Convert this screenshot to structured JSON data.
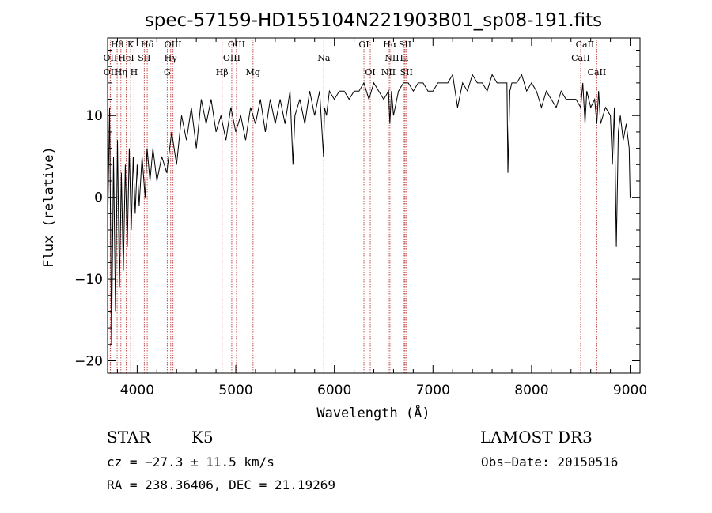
{
  "chart_data": {
    "type": "line",
    "title": "spec-57159-HD155104N221903B01_sp08-191.fits",
    "xlabel": "Wavelength (Å)",
    "ylabel": "Flux (relative)",
    "xlim": [
      3700,
      9100
    ],
    "ylim": [
      -21.5,
      19.5
    ],
    "x_ticks": [
      4000,
      5000,
      6000,
      7000,
      8000,
      9000
    ],
    "y_ticks": [
      10,
      0,
      -10,
      -20
    ],
    "x_tick_labels": [
      "4000",
      "5000",
      "6000",
      "7000",
      "8000",
      "9000"
    ],
    "y_tick_labels": [
      "10",
      "0",
      "−10",
      "−20"
    ],
    "series": [
      {
        "name": "flux",
        "x": [
          3700,
          3720,
          3740,
          3760,
          3780,
          3800,
          3820,
          3840,
          3860,
          3880,
          3900,
          3920,
          3940,
          3960,
          3980,
          4000,
          4020,
          4050,
          4080,
          4100,
          4130,
          4160,
          4200,
          4250,
          4300,
          4350,
          4400,
          4450,
          4500,
          4550,
          4600,
          4650,
          4700,
          4750,
          4800,
          4850,
          4900,
          4950,
          5000,
          5050,
          5100,
          5150,
          5200,
          5250,
          5300,
          5350,
          5400,
          5450,
          5500,
          5550,
          5580,
          5600,
          5650,
          5700,
          5750,
          5800,
          5850,
          5890,
          5900,
          5920,
          5950,
          6000,
          6050,
          6100,
          6150,
          6200,
          6250,
          6300,
          6350,
          6400,
          6450,
          6500,
          6550,
          6563,
          6580,
          6600,
          6650,
          6700,
          6750,
          6800,
          6850,
          6900,
          6950,
          7000,
          7050,
          7100,
          7150,
          7200,
          7250,
          7300,
          7350,
          7400,
          7450,
          7500,
          7550,
          7600,
          7650,
          7700,
          7750,
          7760,
          7780,
          7800,
          7850,
          7900,
          7950,
          8000,
          8050,
          8100,
          8150,
          8200,
          8250,
          8300,
          8350,
          8400,
          8450,
          8498,
          8520,
          8542,
          8560,
          8600,
          8640,
          8662,
          8680,
          8700,
          8750,
          8800,
          8820,
          8840,
          8860,
          8880,
          8900,
          8930,
          8960,
          8990,
          9000
        ],
        "y": [
          -4,
          11,
          -18,
          5,
          -14,
          7,
          -11,
          3,
          -9,
          4,
          -6,
          6,
          -4,
          5,
          -2,
          4,
          -1,
          5,
          0,
          6,
          2,
          6,
          2,
          5,
          3,
          8,
          4,
          10,
          7,
          11,
          6,
          12,
          9,
          12,
          8,
          10,
          7,
          11,
          8,
          10,
          7,
          11,
          9,
          12,
          8,
          12,
          9,
          12,
          9,
          13,
          4,
          10,
          12,
          9,
          13,
          10,
          13,
          5,
          11,
          10,
          13,
          12,
          13,
          13,
          12,
          13,
          13,
          14,
          12,
          14,
          13,
          12,
          13,
          9,
          13,
          10,
          13,
          14,
          14,
          13,
          14,
          14,
          13,
          13,
          14,
          14,
          14,
          15,
          11,
          14,
          13,
          15,
          14,
          14,
          13,
          15,
          14,
          14,
          14,
          3,
          13,
          14,
          14,
          15,
          13,
          14,
          13,
          11,
          13,
          12,
          11,
          13,
          12,
          12,
          12,
          11,
          14,
          9,
          13,
          11,
          12,
          9,
          13,
          9,
          11,
          10,
          4,
          11,
          -6,
          8,
          10,
          7,
          9,
          6,
          0
        ]
      }
    ],
    "spectral_lines": [
      {
        "row": 1,
        "label": "Hθ",
        "wavelength": 3797
      },
      {
        "row": 1,
        "label": "K",
        "wavelength": 3934
      },
      {
        "row": 1,
        "label": "Hδ",
        "wavelength": 4102
      },
      {
        "row": 1,
        "label": "OIII",
        "wavelength": 4363
      },
      {
        "row": 1,
        "label": "OIII",
        "wavelength": 5007
      },
      {
        "row": 1,
        "label": "OI",
        "wavelength": 6300
      },
      {
        "row": 1,
        "label": "Hα",
        "wavelength": 6563
      },
      {
        "row": 1,
        "label": "SII",
        "wavelength": 6717
      },
      {
        "row": 1,
        "label": "CaII",
        "wavelength": 8542
      },
      {
        "row": 2,
        "label": "OII",
        "wavelength": 3727
      },
      {
        "row": 2,
        "label": "HeI",
        "wavelength": 3889
      },
      {
        "row": 2,
        "label": "SII",
        "wavelength": 4072
      },
      {
        "row": 2,
        "label": "Hγ",
        "wavelength": 4340
      },
      {
        "row": 2,
        "label": "OIII",
        "wavelength": 4959
      },
      {
        "row": 2,
        "label": "Na",
        "wavelength": 5893
      },
      {
        "row": 2,
        "label": "NII",
        "wavelength": 6584
      },
      {
        "row": 2,
        "label": "Li",
        "wavelength": 6708
      },
      {
        "row": 2,
        "label": "CaII",
        "wavelength": 8498
      },
      {
        "row": 3,
        "label": "OII",
        "wavelength": 3729
      },
      {
        "row": 3,
        "label": "Hη",
        "wavelength": 3835
      },
      {
        "row": 3,
        "label": "H",
        "wavelength": 3968
      },
      {
        "row": 3,
        "label": "G",
        "wavelength": 4305
      },
      {
        "row": 3,
        "label": "Hβ",
        "wavelength": 4861
      },
      {
        "row": 3,
        "label": "Mg",
        "wavelength": 5175
      },
      {
        "row": 3,
        "label": "OI",
        "wavelength": 6364
      },
      {
        "row": 3,
        "label": "NII",
        "wavelength": 6548
      },
      {
        "row": 3,
        "label": "SII",
        "wavelength": 6731
      },
      {
        "row": 3,
        "label": "CaII",
        "wavelength": 8662
      }
    ]
  },
  "info": {
    "object_type": "STAR",
    "subclass": "K5",
    "survey": "LAMOST DR3",
    "cz": "cz = −27.3 ± 11.5 km/s",
    "obs_date": "Obs−Date: 20150516",
    "coords": "RA = 238.36406, DEC =  21.19269"
  },
  "colors": {
    "spectrum": "#000000",
    "line_markers": "#c0504d",
    "axes": "#000000",
    "background": "#ffffff"
  }
}
